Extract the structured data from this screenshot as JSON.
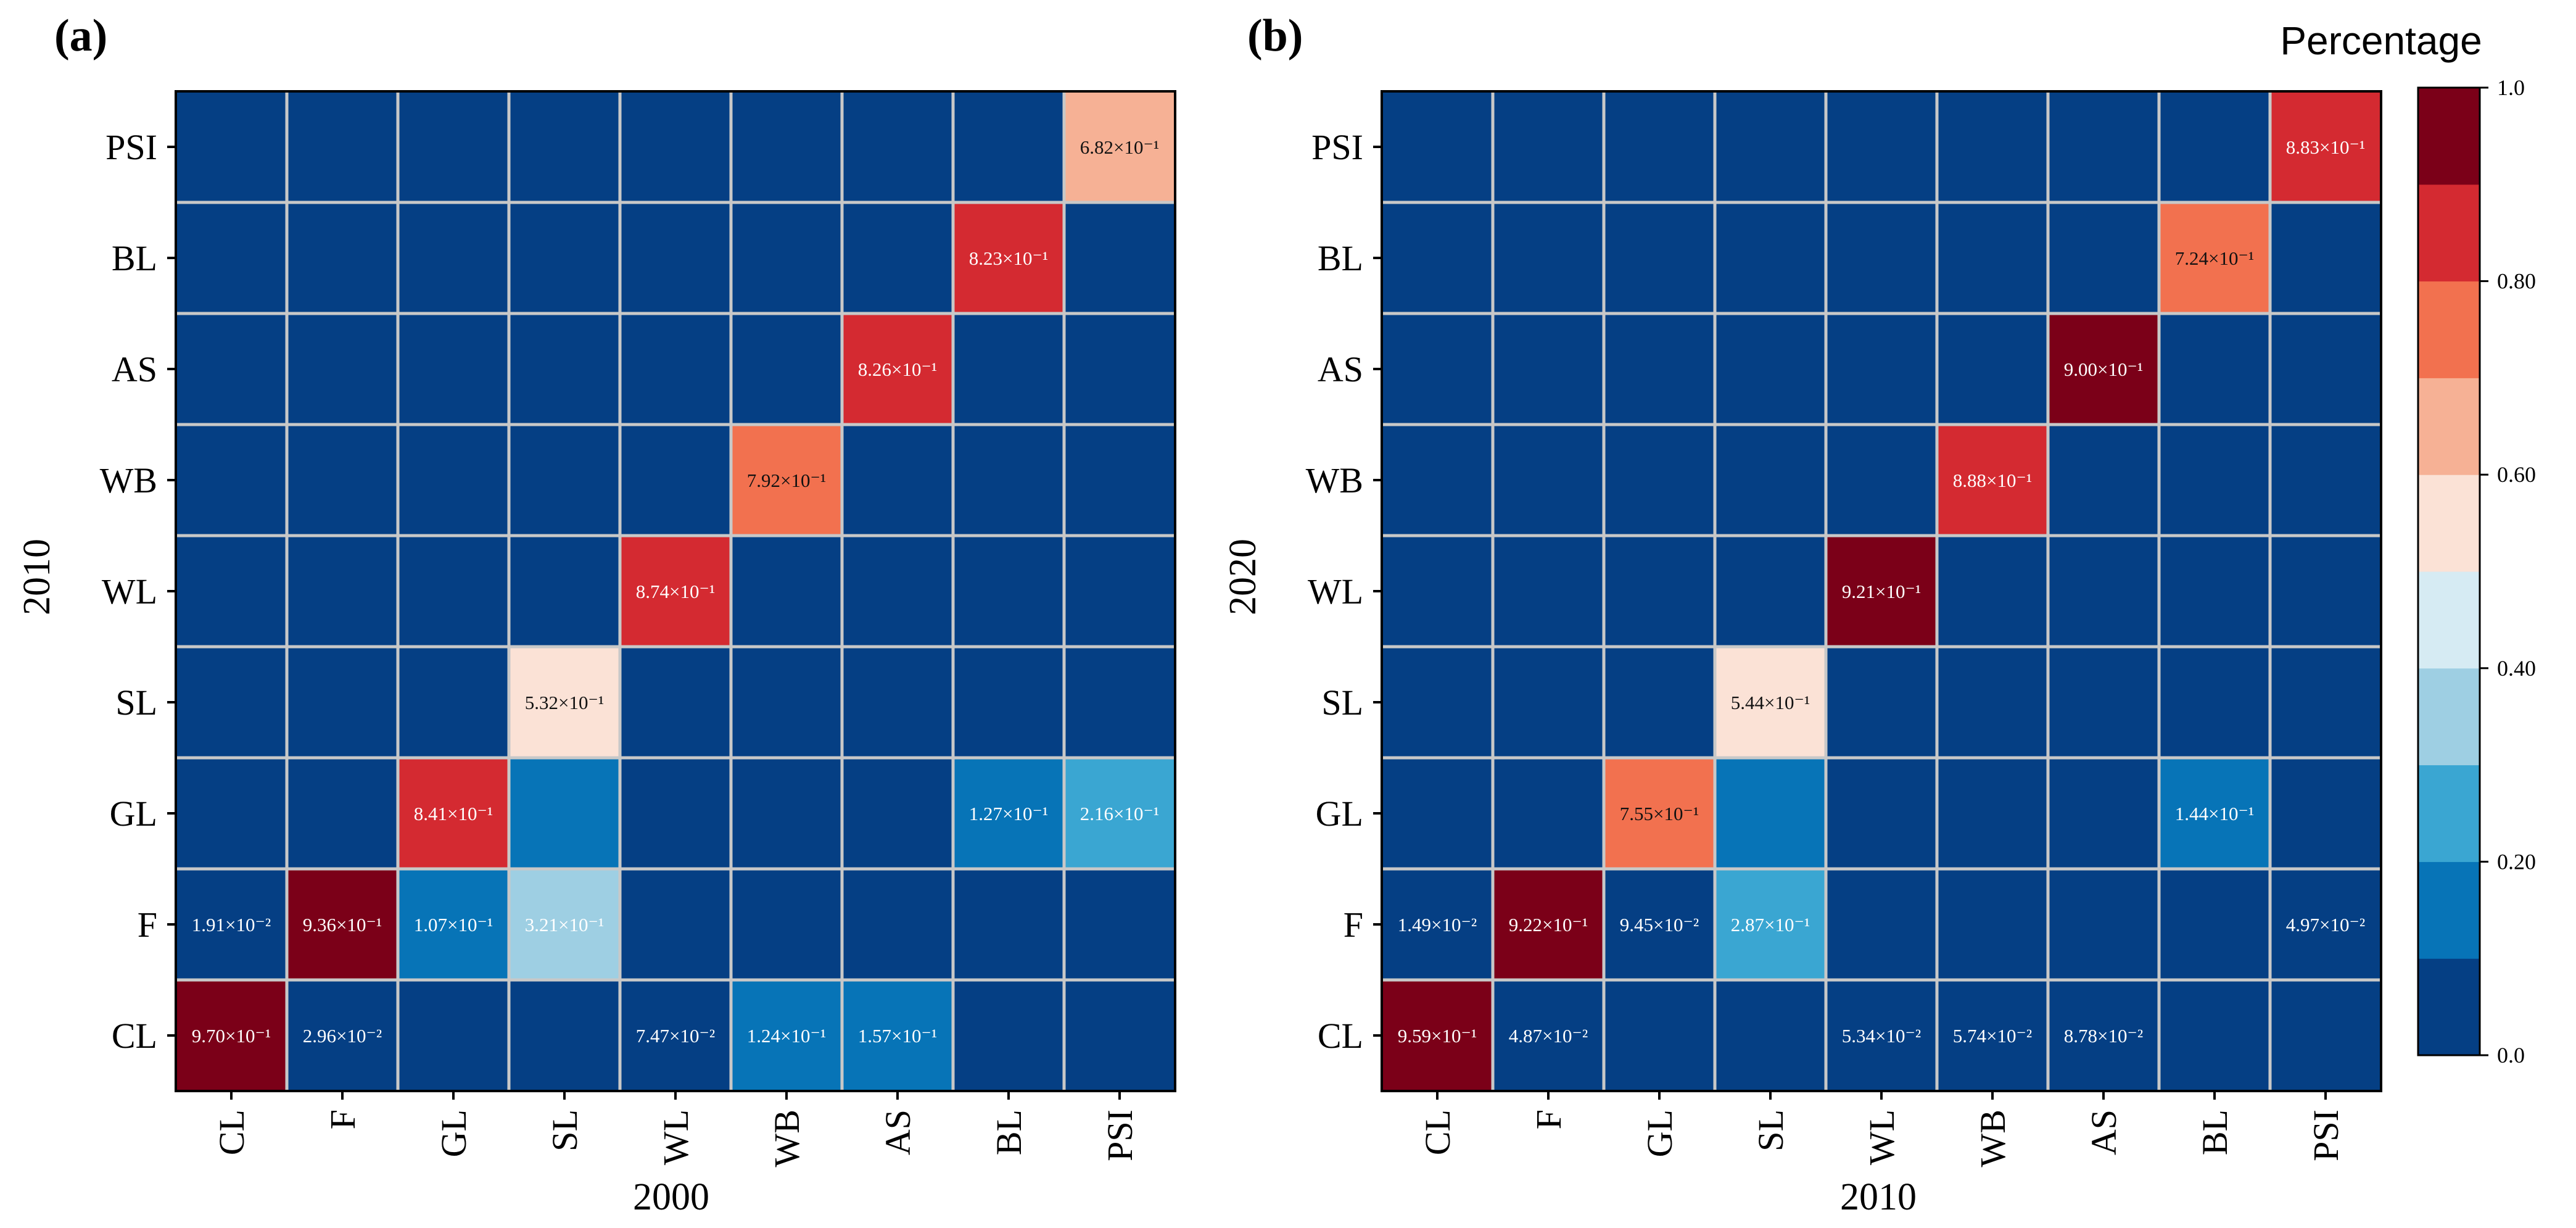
{
  "colors": {
    "background_cell": "#053f84",
    "grid_line": "#c8c8c8",
    "levels": [
      "#053f84",
      "#0774b7",
      "#3aa6d2",
      "#9ecfe3",
      "#d6ebf3",
      "#fbe2d6",
      "#f6b195",
      "#f2714f",
      "#d42a31",
      "#7b0018"
    ]
  },
  "colorbar": {
    "title": "Percentage",
    "ticks": [
      {
        "value": 0.0,
        "label": "0.0"
      },
      {
        "value": 0.2,
        "label": "0.20"
      },
      {
        "value": 0.4,
        "label": "0.40"
      },
      {
        "value": 0.6,
        "label": "0.60"
      },
      {
        "value": 0.8,
        "label": "0.80"
      },
      {
        "value": 1.0,
        "label": "1.0"
      }
    ]
  },
  "chart_data": [
    {
      "type": "heatmap",
      "panel_label": "(a)",
      "title": "",
      "xlabel": "2000",
      "ylabel": "2010",
      "x_categories": [
        "CL",
        "F",
        "GL",
        "SL",
        "WL",
        "WB",
        "AS",
        "BL",
        "PSI"
      ],
      "y_categories": [
        "CL",
        "F",
        "GL",
        "SL",
        "WL",
        "WB",
        "AS",
        "BL",
        "PSI"
      ],
      "cells": [
        {
          "x": "CL",
          "y": "CL",
          "value": 0.97,
          "label": "9.70×10⁻¹"
        },
        {
          "x": "F",
          "y": "CL",
          "value": 0.0296,
          "label": "2.96×10⁻²"
        },
        {
          "x": "WL",
          "y": "CL",
          "value": 0.0747,
          "label": "7.47×10⁻²"
        },
        {
          "x": "WB",
          "y": "CL",
          "value": 0.124,
          "label": "1.24×10⁻¹"
        },
        {
          "x": "AS",
          "y": "CL",
          "value": 0.157,
          "label": "1.57×10⁻¹"
        },
        {
          "x": "CL",
          "y": "F",
          "value": 0.0191,
          "label": "1.91×10⁻²"
        },
        {
          "x": "F",
          "y": "F",
          "value": 0.936,
          "label": "9.36×10⁻¹"
        },
        {
          "x": "GL",
          "y": "F",
          "value": 0.107,
          "label": "1.07×10⁻¹"
        },
        {
          "x": "SL",
          "y": "F",
          "value": 0.321,
          "label": "3.21×10⁻¹"
        },
        {
          "x": "GL",
          "y": "GL",
          "value": 0.841,
          "label": "8.41×10⁻¹"
        },
        {
          "x": "SL",
          "y": "GL",
          "value": 0.15,
          "label": ""
        },
        {
          "x": "BL",
          "y": "GL",
          "value": 0.127,
          "label": "1.27×10⁻¹"
        },
        {
          "x": "PSI",
          "y": "GL",
          "value": 0.216,
          "label": "2.16×10⁻¹"
        },
        {
          "x": "SL",
          "y": "SL",
          "value": 0.532,
          "label": "5.32×10⁻¹"
        },
        {
          "x": "WL",
          "y": "WL",
          "value": 0.874,
          "label": "8.74×10⁻¹"
        },
        {
          "x": "WB",
          "y": "WB",
          "value": 0.792,
          "label": "7.92×10⁻¹"
        },
        {
          "x": "AS",
          "y": "AS",
          "value": 0.826,
          "label": "8.26×10⁻¹"
        },
        {
          "x": "BL",
          "y": "BL",
          "value": 0.823,
          "label": "8.23×10⁻¹"
        },
        {
          "x": "PSI",
          "y": "PSI",
          "value": 0.682,
          "label": "6.82×10⁻¹"
        }
      ]
    },
    {
      "type": "heatmap",
      "panel_label": "(b)",
      "title": "",
      "xlabel": "2010",
      "ylabel": "2020",
      "x_categories": [
        "CL",
        "F",
        "GL",
        "SL",
        "WL",
        "WB",
        "AS",
        "BL",
        "PSI"
      ],
      "y_categories": [
        "CL",
        "F",
        "GL",
        "SL",
        "WL",
        "WB",
        "AS",
        "BL",
        "PSI"
      ],
      "cells": [
        {
          "x": "CL",
          "y": "CL",
          "value": 0.959,
          "label": "9.59×10⁻¹"
        },
        {
          "x": "F",
          "y": "CL",
          "value": 0.0487,
          "label": "4.87×10⁻²"
        },
        {
          "x": "WL",
          "y": "CL",
          "value": 0.0534,
          "label": "5.34×10⁻²"
        },
        {
          "x": "WB",
          "y": "CL",
          "value": 0.0574,
          "label": "5.74×10⁻²"
        },
        {
          "x": "AS",
          "y": "CL",
          "value": 0.0878,
          "label": "8.78×10⁻²"
        },
        {
          "x": "CL",
          "y": "F",
          "value": 0.0149,
          "label": "1.49×10⁻²"
        },
        {
          "x": "F",
          "y": "F",
          "value": 0.922,
          "label": "9.22×10⁻¹"
        },
        {
          "x": "GL",
          "y": "F",
          "value": 0.0945,
          "label": "9.45×10⁻²"
        },
        {
          "x": "SL",
          "y": "F",
          "value": 0.287,
          "label": "2.87×10⁻¹"
        },
        {
          "x": "PSI",
          "y": "F",
          "value": 0.0497,
          "label": "4.97×10⁻²"
        },
        {
          "x": "GL",
          "y": "GL",
          "value": 0.755,
          "label": "7.55×10⁻¹"
        },
        {
          "x": "SL",
          "y": "GL",
          "value": 0.15,
          "label": ""
        },
        {
          "x": "BL",
          "y": "GL",
          "value": 0.144,
          "label": "1.44×10⁻¹"
        },
        {
          "x": "SL",
          "y": "SL",
          "value": 0.544,
          "label": "5.44×10⁻¹"
        },
        {
          "x": "WL",
          "y": "WL",
          "value": 0.921,
          "label": "9.21×10⁻¹"
        },
        {
          "x": "WB",
          "y": "WB",
          "value": 0.888,
          "label": "8.88×10⁻¹"
        },
        {
          "x": "AS",
          "y": "AS",
          "value": 0.9,
          "label": "9.00×10⁻¹"
        },
        {
          "x": "BL",
          "y": "BL",
          "value": 0.724,
          "label": "7.24×10⁻¹"
        },
        {
          "x": "PSI",
          "y": "PSI",
          "value": 0.883,
          "label": "8.83×10⁻¹"
        }
      ]
    }
  ]
}
